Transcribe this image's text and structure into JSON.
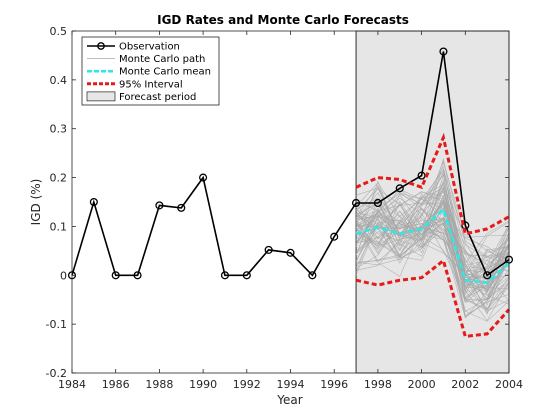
{
  "chart_data": {
    "type": "line",
    "title": "IGD Rates and Monte Carlo Forecasts",
    "xlabel": "Year",
    "ylabel": "IGD (%)",
    "xlim": [
      1984,
      2004
    ],
    "ylim": [
      -0.2,
      0.5
    ],
    "xticks": [
      "1984",
      "1986",
      "1988",
      "1990",
      "1992",
      "1994",
      "1996",
      "1998",
      "2000",
      "2002",
      "2004"
    ],
    "yticks": [
      "-0.2",
      "-0.1",
      "0",
      "0.1",
      "0.2",
      "0.3",
      "0.4",
      "0.5"
    ],
    "grid": false,
    "legend_position": "top-left",
    "forecast_period": [
      1997,
      2004
    ],
    "series": [
      {
        "name": "Observation",
        "color": "#000000",
        "marker": "circle",
        "x": [
          1984,
          1985,
          1986,
          1987,
          1988,
          1989,
          1990,
          1991,
          1992,
          1993,
          1994,
          1995,
          1996,
          1997,
          1998,
          1999,
          2000,
          2001,
          2002,
          2003,
          2004
        ],
        "y": [
          0.0,
          0.15,
          0.0,
          0.0,
          0.143,
          0.138,
          0.2,
          0.0,
          0.0,
          0.052,
          0.046,
          0.0,
          0.079,
          0.148,
          0.148,
          0.178,
          0.204,
          0.458,
          0.102,
          0.0,
          0.032
        ]
      },
      {
        "name": "Monte Carlo path",
        "color": "#a6a6a6"
      },
      {
        "name": "Monte Carlo mean",
        "color": "#33e6e6",
        "x": [
          1997,
          1998,
          1999,
          2000,
          2001,
          2002,
          2003,
          2004
        ],
        "y": [
          0.085,
          0.098,
          0.085,
          0.095,
          0.135,
          -0.01,
          -0.015,
          0.025
        ]
      },
      {
        "name": "95% Interval",
        "color": "#e61a1a",
        "x": [
          1997,
          1998,
          1999,
          2000,
          2001,
          2002,
          2003,
          2004
        ],
        "upper": [
          0.18,
          0.2,
          0.196,
          0.18,
          0.282,
          0.085,
          0.095,
          0.12
        ],
        "lower": [
          -0.01,
          -0.02,
          -0.01,
          -0.005,
          0.03,
          -0.125,
          -0.12,
          -0.07
        ]
      },
      {
        "name": "Forecast period",
        "color": "#e6e6e6"
      }
    ]
  }
}
